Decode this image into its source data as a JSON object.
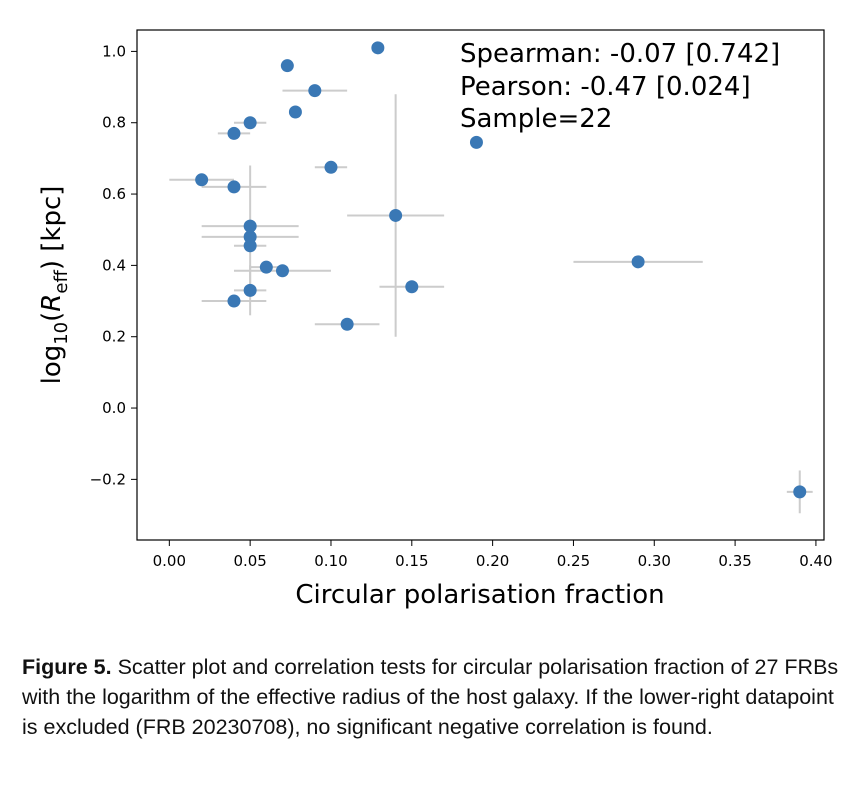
{
  "chart_data": {
    "type": "scatter",
    "xlabel": "Circular polarisation fraction",
    "ylabel_prefix": "log",
    "ylabel_sub": "10",
    "ylabel_open": "(",
    "ylabel_var": "R",
    "ylabel_var_sub": "eff",
    "ylabel_suffix": ") [kpc]",
    "xlim": [
      -0.02,
      0.405
    ],
    "ylim": [
      -0.37,
      1.06
    ],
    "xticks": [
      0.0,
      0.05,
      0.1,
      0.15,
      0.2,
      0.25,
      0.3,
      0.35,
      0.4
    ],
    "xtick_labels": [
      "0.00",
      "0.05",
      "0.10",
      "0.15",
      "0.20",
      "0.25",
      "0.30",
      "0.35",
      "0.40"
    ],
    "yticks": [
      -0.2,
      0.0,
      0.2,
      0.4,
      0.6,
      0.8,
      1.0
    ],
    "ytick_labels": [
      "−0.2",
      "0.0",
      "0.2",
      "0.4",
      "0.6",
      "0.8",
      "1.0"
    ],
    "grid": false,
    "marker_color": "#3a78b5",
    "errorbar_color": "#cccccc",
    "annotations": [
      "Spearman: -0.07 [0.742]",
      "Pearson: -0.47 [0.024]",
      "Sample=22"
    ],
    "points": [
      {
        "x": 0.129,
        "y": 1.01
      },
      {
        "x": 0.073,
        "y": 0.96
      },
      {
        "x": 0.09,
        "y": 0.89,
        "xerr": 0.02
      },
      {
        "x": 0.078,
        "y": 0.83
      },
      {
        "x": 0.05,
        "y": 0.8,
        "xerr": 0.01
      },
      {
        "x": 0.04,
        "y": 0.77,
        "xerr": 0.01
      },
      {
        "x": 0.19,
        "y": 0.745
      },
      {
        "x": 0.1,
        "y": 0.675,
        "xerr": 0.01
      },
      {
        "x": 0.02,
        "y": 0.64,
        "xerr": 0.02
      },
      {
        "x": 0.04,
        "y": 0.62,
        "xerr": 0.02
      },
      {
        "x": 0.05,
        "y": 0.51,
        "xerr": 0.03,
        "yerr": 0.17
      },
      {
        "x": 0.05,
        "y": 0.48,
        "xerr": 0.03
      },
      {
        "x": 0.05,
        "y": 0.455,
        "xerr": 0.01
      },
      {
        "x": 0.14,
        "y": 0.54,
        "xerr": 0.03,
        "yerr": 0.34
      },
      {
        "x": 0.06,
        "y": 0.395,
        "xerr": 0.01
      },
      {
        "x": 0.07,
        "y": 0.385,
        "xerr": 0.03
      },
      {
        "x": 0.05,
        "y": 0.33,
        "xerr": 0.01,
        "yerr": 0.07
      },
      {
        "x": 0.15,
        "y": 0.34,
        "xerr": 0.02
      },
      {
        "x": 0.04,
        "y": 0.3,
        "xerr": 0.02
      },
      {
        "x": 0.11,
        "y": 0.235,
        "xerr": 0.02
      },
      {
        "x": 0.29,
        "y": 0.41,
        "xerr": 0.04
      },
      {
        "x": 0.39,
        "y": -0.235,
        "xerr": 0.008,
        "yerr": 0.06
      }
    ]
  },
  "caption": {
    "label": "Figure 5.",
    "text": " Scatter plot and correlation tests for circular polarisation fraction of 27 FRBs with the logarithm of the effective radius of the host galaxy. If the lower-right datapoint is excluded (FRB 20230708), no significant negative correlation is found."
  }
}
